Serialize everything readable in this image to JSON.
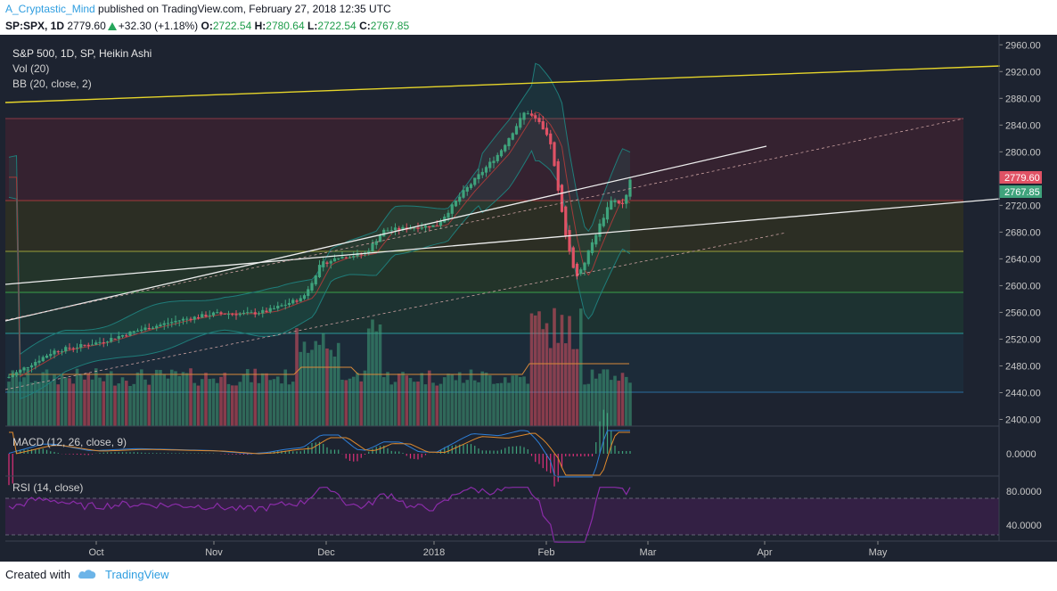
{
  "header": {
    "author": "A_Cryptastic_Mind",
    "published_text": " published on TradingView.com, February 27, 2018 12:35 UTC",
    "symbol": "SP:SPX, 1D",
    "last": "2779.60",
    "change": "+32.30 (+1.18%)",
    "o_label": "O:",
    "o": "2722.54",
    "h_label": "H:",
    "h": "2780.64",
    "l_label": "L:",
    "l": "2722.54",
    "c_label": "C:",
    "c": "2767.85"
  },
  "legend": {
    "title": "S&P 500, 1D, SP, Heikin Ashi",
    "vol": "Vol (20)",
    "bb": "BB (20, close, 2)",
    "macd": "MACD (12, 26, close, 9)",
    "rsi": "RSI (14, close)"
  },
  "footer": {
    "created_with": "Created with",
    "brand": "TradingView"
  },
  "colors": {
    "up": "#3fa37c",
    "down": "#e05265",
    "bb": "#1f7d7a",
    "bb_mid": "#a33a3a",
    "yellow": "#e6d52a",
    "white": "#f0f0f0",
    "macd": "#2e7fd8",
    "signal": "#e08a2c",
    "rsi": "#8a2ca8",
    "bg": "#1d2330"
  },
  "chart_data": {
    "type": "candlestick",
    "title": "S&P 500, 1D, SP, Heikin Ashi",
    "ylim": [
      2390,
      2975
    ],
    "yticks": [
      "2960.00",
      "2920.00",
      "2880.00",
      "2840.00",
      "2800.00",
      "2760.00",
      "2720.00",
      "2680.00",
      "2640.00",
      "2600.00",
      "2560.00",
      "2520.00",
      "2480.00",
      "2440.00",
      "2400.00"
    ],
    "price_labels": {
      "last": "2779.60",
      "close": "2767.85"
    },
    "xlabels": [
      "Oct",
      "Nov",
      "Dec",
      "2018",
      "Feb",
      "Mar",
      "Apr",
      "May"
    ],
    "horizontal_levels": [
      2870,
      2745,
      2662,
      2597,
      2533,
      2440
    ],
    "trend_anchors": [
      {
        "name": "yellow-channel",
        "from": [
          2898,
          "2017-09-12"
        ],
        "to": [
          2955,
          "2018-05-31"
        ]
      },
      {
        "name": "support-line",
        "from": [
          2612,
          "2017-09-12"
        ],
        "to": [
          2745,
          "2018-05-31"
        ]
      },
      {
        "name": "rising-resistance",
        "from": [
          2570,
          "2017-09-12"
        ],
        "to": [
          2826,
          "2018-03-28"
        ]
      }
    ],
    "macd": {
      "ytick": "0.0000"
    },
    "rsi": {
      "yticks": [
        "80.0000",
        "40.0000"
      ],
      "upper": 70,
      "lower": 30
    }
  }
}
